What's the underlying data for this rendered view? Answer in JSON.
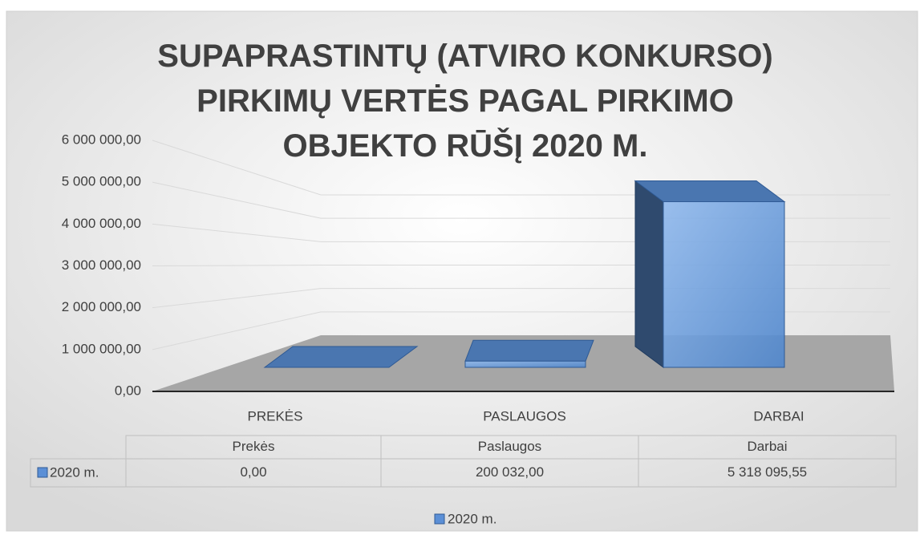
{
  "chart_data": {
    "type": "bar3d",
    "title": "SUPAPRASTINTŲ (ATVIRO KONKURSO) PIRKIMŲ VERTĖS PAGAL PIRKIMO OBJEKTO RŪŠĮ 2020 M.",
    "categories": [
      "PREKĖS",
      "PASLAUGOS",
      "DARBAI"
    ],
    "table_header": [
      "Prekės",
      "Paslaugos",
      "Darbai"
    ],
    "series": [
      {
        "name": "2020 m.",
        "color": "#5b8fd6",
        "values": [
          0,
          200032,
          5318095.55
        ],
        "value_labels": [
          "0,00",
          "200 032,00",
          "5 318 095,55"
        ]
      }
    ],
    "ylim": [
      0,
      6000000
    ],
    "yticks": [
      {
        "value": 0,
        "label": "0,00"
      },
      {
        "value": 1000000,
        "label": "1 000 000,00"
      },
      {
        "value": 2000000,
        "label": "2 000 000,00"
      },
      {
        "value": 3000000,
        "label": "3 000 000,00"
      },
      {
        "value": 4000000,
        "label": "4 000 000,00"
      },
      {
        "value": 5000000,
        "label": "5 000 000,00"
      },
      {
        "value": 6000000,
        "label": "6 000 000,00"
      }
    ],
    "grid": true,
    "legend": "bottom"
  }
}
